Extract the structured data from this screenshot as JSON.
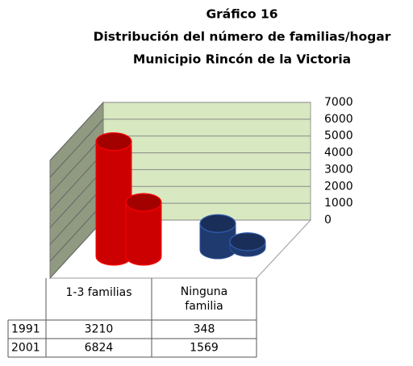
{
  "chart_data": {
    "type": "bar3d",
    "title": [
      "Gráfico 16",
      "Distribución del número de familias/hogar",
      "Municipio Rincón de la Victoria"
    ],
    "categories": [
      [
        "1-3 familias"
      ],
      [
        "Ninguna",
        "familia"
      ]
    ],
    "colors": [
      "#cc0000",
      "#1f3a6e"
    ],
    "series": [
      {
        "name": "1991",
        "values": [
          3210,
          348
        ]
      },
      {
        "name": "2001",
        "values": [
          6824,
          1569
        ]
      }
    ],
    "ylim": [
      0,
      7000
    ],
    "yticks": [
      0,
      1000,
      2000,
      3000,
      4000,
      5000,
      6000,
      7000
    ],
    "grid": true
  }
}
